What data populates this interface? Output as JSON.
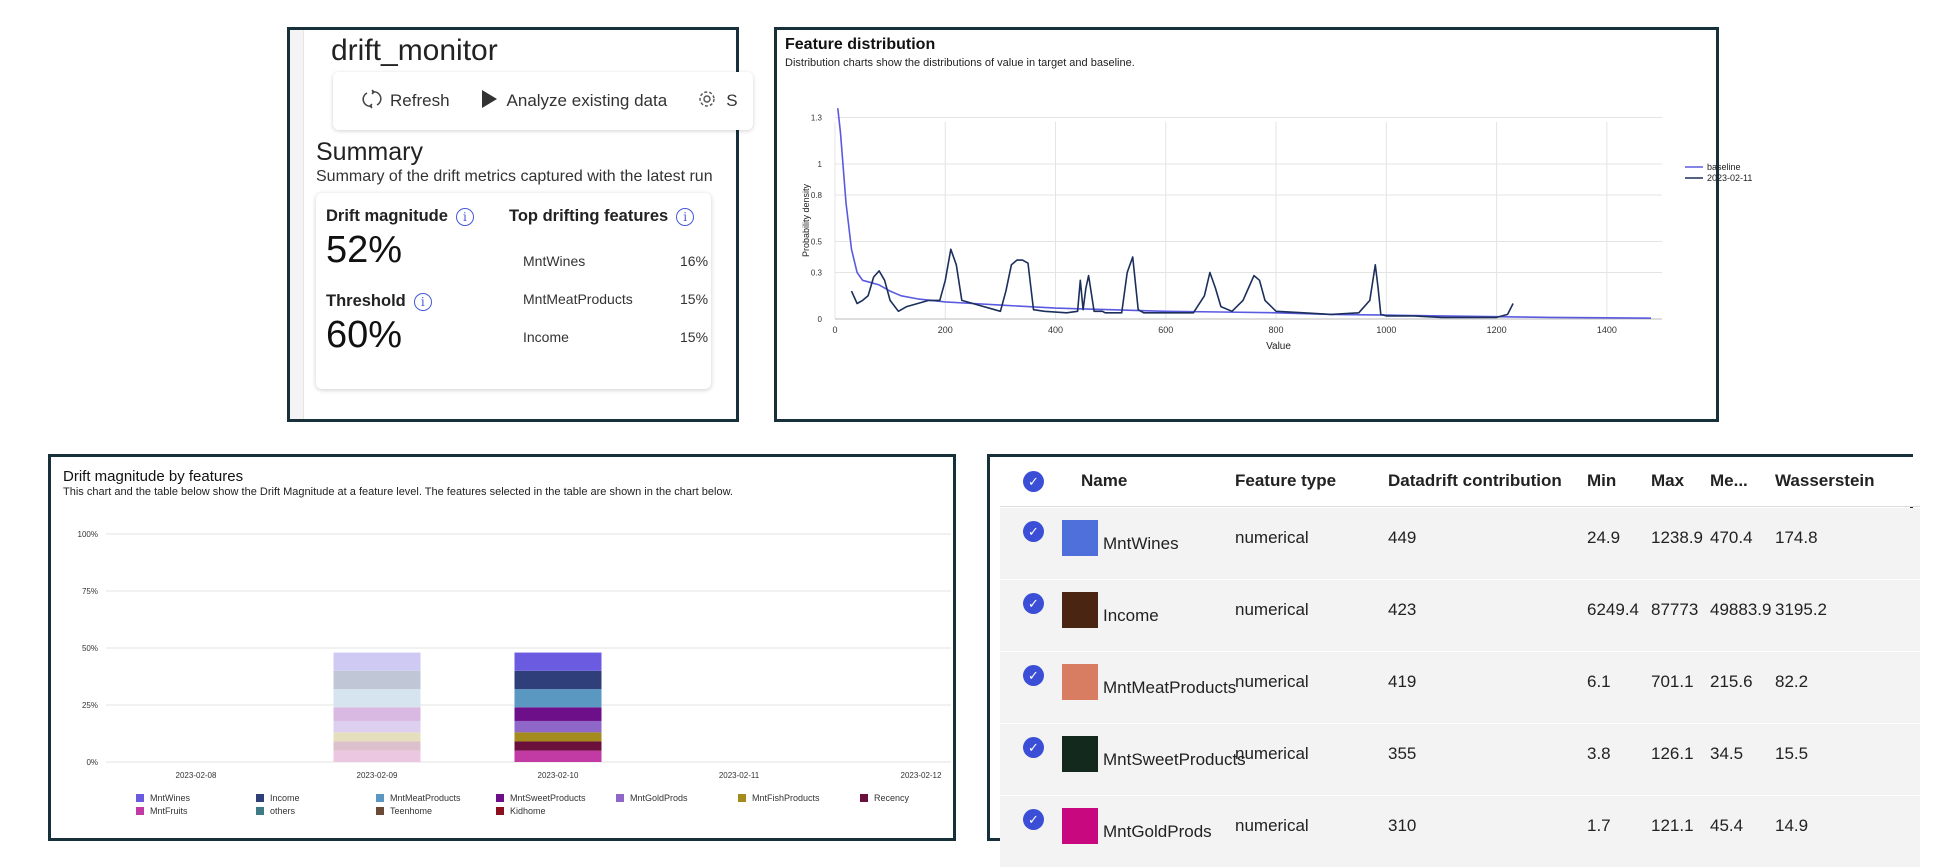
{
  "monitor": {
    "title": "drift_monitor",
    "toolbar": {
      "refresh": "Refresh",
      "analyze": "Analyze existing data",
      "settings_partial": "S"
    },
    "summary_title": "Summary",
    "summary_sub": "Summary of the drift metrics captured with the latest run",
    "drift_label": "Drift magnitude",
    "drift_value": "52%",
    "threshold_label": "Threshold",
    "threshold_value": "60%",
    "top_label": "Top drifting features",
    "top_features": [
      {
        "name": "MntWines",
        "pct": "16%"
      },
      {
        "name": "MntMeatProducts",
        "pct": "15%"
      },
      {
        "name": "Income",
        "pct": "15%"
      }
    ],
    "icons": {
      "refresh": "refresh-icon",
      "play": "play-icon",
      "settings": "gear-icon",
      "info": "info-icon"
    }
  },
  "distribution": {
    "title": "Feature distribution",
    "sub": "Distribution charts show the distributions of value in target and baseline.",
    "chart_data": {
      "type": "line",
      "xlabel": "Value",
      "ylabel": "Probability density",
      "xlim": [
        0,
        1500
      ],
      "ylim": [
        0,
        1.4
      ],
      "x_ticks": [
        "0",
        "200",
        "400",
        "600",
        "800",
        "1000",
        "1200",
        "1400"
      ],
      "y_ticks": [
        "0",
        "0.3",
        "0.5",
        "0.8",
        "1",
        "1.3"
      ],
      "legend_position": "top-right",
      "series": [
        {
          "name": "baseline",
          "color": "#5a5ae0",
          "x": [
            5,
            10,
            20,
            30,
            40,
            50,
            60,
            80,
            100,
            120,
            150,
            200,
            250,
            300,
            400,
            450,
            500,
            600,
            700,
            800,
            900,
            1000,
            1100,
            1200,
            1300,
            1400,
            1480
          ],
          "y": [
            1.36,
            1.2,
            0.75,
            0.45,
            0.3,
            0.25,
            0.24,
            0.22,
            0.18,
            0.15,
            0.13,
            0.11,
            0.1,
            0.09,
            0.07,
            0.065,
            0.06,
            0.05,
            0.045,
            0.04,
            0.03,
            0.025,
            0.02,
            0.015,
            0.01,
            0.008,
            0.005
          ]
        },
        {
          "name": "2023-02-11",
          "color": "#1c2f5c",
          "x": [
            30,
            40,
            50,
            60,
            70,
            80,
            90,
            100,
            115,
            130,
            150,
            170,
            190,
            200,
            210,
            220,
            230,
            250,
            300,
            310,
            320,
            330,
            340,
            350,
            360,
            380,
            420,
            440,
            445,
            450,
            455,
            460,
            470,
            475,
            480,
            485,
            490,
            520,
            530,
            540,
            550,
            560,
            600,
            650,
            670,
            680,
            690,
            700,
            720,
            740,
            750,
            760,
            770,
            780,
            800,
            850,
            900,
            950,
            970,
            980,
            985,
            990,
            1000,
            1050,
            1100,
            1150,
            1200,
            1220,
            1230
          ],
          "y": [
            0.18,
            0.1,
            0.12,
            0.15,
            0.27,
            0.31,
            0.25,
            0.12,
            0.05,
            0.08,
            0.1,
            0.12,
            0.12,
            0.25,
            0.45,
            0.35,
            0.12,
            0.1,
            0.05,
            0.18,
            0.35,
            0.38,
            0.38,
            0.36,
            0.06,
            0.05,
            0.04,
            0.05,
            0.25,
            0.06,
            0.2,
            0.28,
            0.05,
            0.05,
            0.05,
            0.05,
            0.04,
            0.04,
            0.3,
            0.4,
            0.06,
            0.04,
            0.04,
            0.04,
            0.15,
            0.3,
            0.2,
            0.08,
            0.05,
            0.12,
            0.2,
            0.28,
            0.25,
            0.12,
            0.05,
            0.04,
            0.03,
            0.04,
            0.12,
            0.35,
            0.2,
            0.03,
            0.02,
            0.02,
            0.01,
            0.01,
            0.01,
            0.03,
            0.1
          ]
        }
      ]
    }
  },
  "drift_chart": {
    "title": "Drift magnitude by features",
    "sub": "This chart and the table below show the Drift Magnitude at a feature level. The features selected in the table are shown in the chart below.",
    "chart_data": {
      "type": "bar",
      "stacked": true,
      "categories": [
        "2023-02-08",
        "2023-02-09",
        "2023-02-10",
        "2023-02-11",
        "2023-02-12"
      ],
      "y_ticks": [
        "0%",
        "25%",
        "50%",
        "75%",
        "100%"
      ],
      "ylim": [
        0,
        100
      ],
      "grid": true,
      "legend_position": "bottom",
      "series": [
        {
          "name": "MntWines",
          "color": "#6b5be0",
          "faded": "#cfcaf3",
          "values": [
            null,
            8,
            8,
            null,
            null
          ]
        },
        {
          "name": "Income",
          "color": "#2f3f7a",
          "faded": "#c0c6d6",
          "values": [
            null,
            8,
            8,
            null,
            null
          ]
        },
        {
          "name": "MntMeatProducts",
          "color": "#5a97c1",
          "faded": "#d5e4ee",
          "values": [
            null,
            8,
            8,
            null,
            null
          ]
        },
        {
          "name": "MntSweetProducts",
          "color": "#6e0f8a",
          "faded": "#d9b9e2",
          "values": [
            null,
            6,
            6,
            null,
            null
          ]
        },
        {
          "name": "MntGoldProds",
          "color": "#8f67c9",
          "faded": "#ddd0ef",
          "values": [
            null,
            5,
            5,
            null,
            null
          ]
        },
        {
          "name": "MntFishProducts",
          "color": "#a38b1e",
          "faded": "#e6dfbe",
          "values": [
            null,
            4,
            4,
            null,
            null
          ]
        },
        {
          "name": "Recency",
          "color": "#6b0f3d",
          "faded": "#dcc0cc",
          "values": [
            null,
            4,
            4,
            null,
            null
          ]
        },
        {
          "name": "MntFruits",
          "color": "#c23aa3",
          "faded": "#ebc7e2",
          "values": [
            null,
            5,
            5,
            null,
            null
          ]
        },
        {
          "name": "others",
          "color": "#3f7b86",
          "faded": "#cadadd",
          "values": [
            null,
            0,
            0,
            null,
            null
          ]
        },
        {
          "name": "Teenhome",
          "color": "#6a4a35",
          "faded": "#d6cbc4",
          "values": [
            null,
            0,
            0,
            null,
            null
          ]
        },
        {
          "name": "Kidhome",
          "color": "#8a1020",
          "faded": "#dfbfc3",
          "values": [
            null,
            0,
            0,
            null,
            null
          ]
        }
      ],
      "faded_category": "2023-02-09"
    }
  },
  "table": {
    "columns": [
      "Name",
      "Feature type",
      "Datadrift contribution",
      "Min",
      "Max",
      "Me...",
      "Wasserstein"
    ],
    "rows": [
      {
        "color": "#4f6fdb",
        "name": "MntWines",
        "type": "numerical",
        "contribution": "449",
        "min": "24.9",
        "max": "1238.9",
        "mean": "470.4",
        "wasserstein": "174.8"
      },
      {
        "color": "#4a2612",
        "name": "Income",
        "type": "numerical",
        "contribution": "423",
        "min": "6249.4",
        "max": "87773",
        "mean": "49883.9",
        "wasserstein": "3195.2"
      },
      {
        "color": "#d87d62",
        "name": "MntMeatProducts",
        "type": "numerical",
        "contribution": "419",
        "min": "6.1",
        "max": "701.1",
        "mean": "215.6",
        "wasserstein": "82.2"
      },
      {
        "color": "#13291d",
        "name": "MntSweetProducts",
        "type": "numerical",
        "contribution": "355",
        "min": "3.8",
        "max": "126.1",
        "mean": "34.5",
        "wasserstein": "15.5"
      },
      {
        "color": "#c8087e",
        "name": "MntGoldProds",
        "type": "numerical",
        "contribution": "310",
        "min": "1.7",
        "max": "121.1",
        "mean": "45.4",
        "wasserstein": "14.9"
      }
    ]
  }
}
